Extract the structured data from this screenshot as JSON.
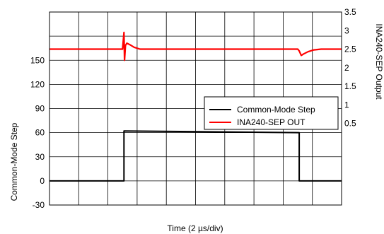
{
  "chart_data": {
    "type": "line",
    "xlabel": "Time (2 µs/div)",
    "ylabel_left": "Common-Mode Step",
    "ylabel_right": "INA240-SEP Output",
    "x_divisions": 10,
    "x_range_div": [
      0,
      10
    ],
    "ylim_left": [
      -30,
      210
    ],
    "yticks_left": [
      -30,
      0,
      30,
      60,
      90,
      120,
      150
    ],
    "ylim_right": [
      -1.7,
      3.5
    ],
    "yticks_right": [
      0.5,
      1,
      1.5,
      2,
      2.5,
      3,
      3.5
    ],
    "grid": true,
    "legend_position": "center-right",
    "series": [
      {
        "name": "Common-Mode Step",
        "color": "#000000",
        "axis": "left",
        "x": [
          0,
          2.55,
          2.55,
          8.55,
          8.55,
          10
        ],
        "y": [
          0,
          0,
          62,
          60,
          0,
          0
        ]
      },
      {
        "name": "INA240-SEP OUT",
        "color": "#ff0000",
        "axis": "right",
        "x": [
          0,
          2.5,
          2.55,
          2.57,
          2.6,
          2.65,
          2.75,
          2.9,
          3.1,
          3.4,
          3.8,
          8.5,
          8.55,
          8.62,
          8.7,
          8.85,
          9.05,
          9.3,
          10
        ],
        "y": [
          2.5,
          2.5,
          2.95,
          2.2,
          2.6,
          2.66,
          2.62,
          2.55,
          2.5,
          2.5,
          2.5,
          2.5,
          2.45,
          2.33,
          2.37,
          2.43,
          2.48,
          2.5,
          2.5
        ]
      }
    ]
  }
}
